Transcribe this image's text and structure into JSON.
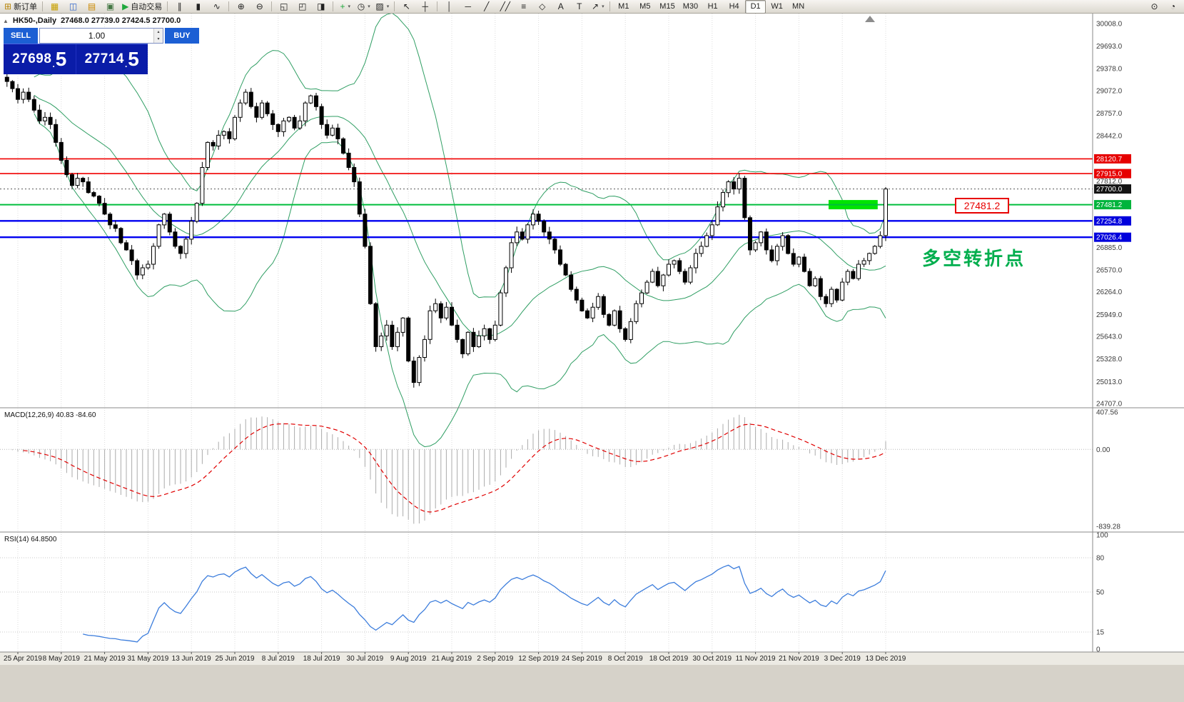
{
  "toolbar": {
    "items": [
      {
        "type": "button",
        "name": "new-order-button",
        "glyph": "⊞",
        "glyph_color": "#B8860B",
        "label": "新订单"
      },
      {
        "type": "sep"
      },
      {
        "type": "button",
        "name": "market-watch-button",
        "glyph": "▦",
        "glyph_color": "#C8A000"
      },
      {
        "type": "button",
        "name": "data-window-button",
        "glyph": "◫",
        "glyph_color": "#3366CC"
      },
      {
        "type": "button",
        "name": "navigator-button",
        "glyph": "▤",
        "glyph_color": "#CC8800"
      },
      {
        "type": "button",
        "name": "terminal-button",
        "glyph": "▣",
        "glyph_color": "#447744"
      },
      {
        "type": "button",
        "name": "autotrading-button",
        "glyph": "▶",
        "glyph_color": "#1FA83C",
        "label": "自动交易"
      },
      {
        "type": "sep"
      },
      {
        "type": "button",
        "name": "chart-bars-button",
        "glyph": "∥"
      },
      {
        "type": "button",
        "name": "chart-candles-button",
        "glyph": "▮"
      },
      {
        "type": "button",
        "name": "chart-line-button",
        "glyph": "∿"
      },
      {
        "type": "sep"
      },
      {
        "type": "button",
        "name": "zoom-in-button",
        "glyph": "⊕"
      },
      {
        "type": "button",
        "name": "zoom-out-button",
        "glyph": "⊖"
      },
      {
        "type": "sep"
      },
      {
        "type": "button",
        "name": "tile-windows-button",
        "glyph": "◱"
      },
      {
        "type": "button",
        "name": "auto-arrange-button",
        "glyph": "◰"
      },
      {
        "type": "button",
        "name": "chart-shift-button",
        "glyph": "◨"
      },
      {
        "type": "sep"
      },
      {
        "type": "button",
        "name": "indicators-button",
        "glyph": "+",
        "glyph_color": "#1FA83C",
        "caret": true
      },
      {
        "type": "button",
        "name": "periods-button",
        "glyph": "◷",
        "caret": true
      },
      {
        "type": "button",
        "name": "templates-button",
        "glyph": "▨",
        "caret": true
      },
      {
        "type": "sep"
      },
      {
        "type": "button",
        "name": "cursor-button",
        "glyph": "↖"
      },
      {
        "type": "button",
        "name": "crosshair-button",
        "glyph": "┼"
      },
      {
        "type": "sep"
      },
      {
        "type": "button",
        "name": "vertical-line-button",
        "glyph": "│"
      },
      {
        "type": "button",
        "name": "horizontal-line-button",
        "glyph": "─"
      },
      {
        "type": "button",
        "name": "trendline-button",
        "glyph": "╱"
      },
      {
        "type": "button",
        "name": "channel-button",
        "glyph": "╱╱"
      },
      {
        "type": "button",
        "name": "fibonacci-button",
        "glyph": "≡"
      },
      {
        "type": "button",
        "name": "shapes-button",
        "glyph": "◇"
      },
      {
        "type": "button",
        "name": "text-button",
        "glyph": "A"
      },
      {
        "type": "button",
        "name": "label-button",
        "glyph": "T"
      },
      {
        "type": "button",
        "name": "arrows-button",
        "glyph": "↗",
        "caret": true
      },
      {
        "type": "sep"
      },
      {
        "type": "timeframes"
      },
      {
        "type": "spacer"
      },
      {
        "type": "button",
        "name": "search-button",
        "glyph": "⊙"
      },
      {
        "type": "button",
        "name": "community-button",
        "glyph": "◔"
      }
    ],
    "timeframes": {
      "options": [
        "M1",
        "M5",
        "M15",
        "M30",
        "H1",
        "H4",
        "D1",
        "W1",
        "MN"
      ],
      "active": "D1"
    }
  },
  "chart": {
    "title": {
      "collapse_glyph": "▲",
      "symbol_period": "HK50-,Daily",
      "ohlc": "27468.0 27739.0 27424.5 27700.0"
    },
    "trade_panel": {
      "sell_label": "SELL",
      "buy_label": "BUY",
      "volume": "1.00",
      "spin_up_glyph": "▴",
      "spin_down_glyph": "▾",
      "sell_price_main": "27698",
      "sell_price_dot": ".",
      "sell_price_pip": "5",
      "buy_price_main": "27714",
      "buy_price_dot": ".",
      "buy_price_pip": "5",
      "button_color": "#1C5FD4",
      "panel_color": "#0A1CA8"
    },
    "annotations": {
      "callout_price": "27481.2",
      "callout_color": "#E80000",
      "turning_point_text": "多空转折点",
      "turning_point_color": "#00AE4D"
    },
    "levels": [
      {
        "name": "resistance-line-28120",
        "price": 28120.7,
        "label": "28120.7",
        "color": "#F00000",
        "label_bg": "#E60000",
        "width": 1.6
      },
      {
        "name": "resistance-line-27915",
        "price": 27915.0,
        "label": "27915.0",
        "color": "#F00000",
        "label_bg": "#E60000",
        "width": 1.6
      },
      {
        "name": "pivot-line-27481",
        "price": 27481.2,
        "label": "27481.2",
        "color": "#00BE3C",
        "label_bg": "#00B43C",
        "width": 2
      },
      {
        "name": "support-line-27254",
        "price": 27254.8,
        "label": "27254.8",
        "color": "#0000F0",
        "label_bg": "#0000DC",
        "width": 2.4
      },
      {
        "name": "support-line-27026",
        "price": 27026.4,
        "label": "27026.4",
        "color": "#0000F0",
        "label_bg": "#0000DC",
        "width": 2.4
      }
    ],
    "current_price": {
      "value": 27700.0,
      "label": "27700.0",
      "label_bg": "#141414"
    },
    "highlight_rect": {
      "price": 27481.2,
      "start_index": 152,
      "end_index": 160,
      "color": "#00E400"
    },
    "y_axis_labels": [
      30008.0,
      29693.0,
      29378.0,
      29072.0,
      28757.0,
      28442.0,
      27812.0,
      26885.0,
      26570.0,
      26264.0,
      25949.0,
      25643.0,
      25328.0,
      25013.0,
      24707.0
    ],
    "x_axis_dates": [
      "25 Apr 2019",
      "8 May 2019",
      "21 May 2019",
      "31 May 2019",
      "13 Jun 2019",
      "25 Jun 2019",
      "8 Jul 2019",
      "18 Jul 2019",
      "30 Jul 2019",
      "9 Aug 2019",
      "21 Aug 2019",
      "2 Sep 2019",
      "12 Sep 2019",
      "24 Sep 2019",
      "8 Oct 2019",
      "18 Oct 2019",
      "30 Oct 2019",
      "11 Nov 2019",
      "21 Nov 2019",
      "3 Dec 2019",
      "13 Dec 2019"
    ]
  },
  "indicators": {
    "macd": {
      "label": "MACD(12,26,9) 40.83 -84.60",
      "axis": [
        407.56,
        0,
        -839.28
      ],
      "histogram_color": "#ABABAB",
      "signal_color": "#E00000"
    },
    "rsi": {
      "label": "RSI(14) 64.8500",
      "axis": [
        100,
        80,
        50,
        15,
        0
      ],
      "levels": [
        80,
        50,
        15
      ],
      "line_color": "#3C7DDC"
    }
  },
  "chart_data": {
    "type": "candlestick",
    "symbol": "HK50-",
    "timeframe": "Daily",
    "ohlc_display": {
      "open": 27468.0,
      "high": 27739.0,
      "low": 27424.5,
      "close": 27700.0
    },
    "y_range": [
      24707.0,
      30008.0
    ],
    "horizontal_levels": [
      28120.7,
      27915.0,
      27481.2,
      27254.8,
      27026.4
    ],
    "overlays": [
      {
        "name": "Bollinger Bands",
        "period": 20,
        "deviation": 2,
        "color": "#2F9E63"
      }
    ],
    "closes": [
      29200,
      29100,
      28950,
      29050,
      28950,
      28800,
      28650,
      28700,
      28600,
      28350,
      28100,
      27900,
      27750,
      27850,
      27800,
      27650,
      27600,
      27500,
      27350,
      27200,
      27150,
      26950,
      26850,
      26700,
      26500,
      26600,
      26650,
      26900,
      27200,
      27350,
      27100,
      26900,
      26800,
      27000,
      27250,
      27500,
      28000,
      28350,
      28300,
      28450,
      28500,
      28400,
      28700,
      28900,
      29050,
      28850,
      28700,
      28900,
      28750,
      28600,
      28500,
      28650,
      28700,
      28550,
      28650,
      28900,
      29000,
      28850,
      28600,
      28450,
      28550,
      28400,
      28200,
      28000,
      27800,
      27350,
      26900,
      26100,
      25500,
      25650,
      25800,
      25500,
      25700,
      25900,
      25300,
      25000,
      25350,
      25600,
      26000,
      26100,
      25900,
      26050,
      25800,
      25600,
      25400,
      25700,
      25500,
      25650,
      25750,
      25600,
      25800,
      26250,
      26600,
      26950,
      27100,
      27000,
      27200,
      27350,
      27250,
      27100,
      27000,
      26850,
      26650,
      26500,
      26300,
      26150,
      26000,
      25900,
      26050,
      26200,
      25950,
      25800,
      26000,
      25750,
      25600,
      25850,
      26100,
      26250,
      26400,
      26550,
      26350,
      26500,
      26650,
      26700,
      26550,
      26400,
      26600,
      26800,
      26900,
      27050,
      27200,
      27450,
      27650,
      27800,
      27700,
      27850,
      27300,
      26850,
      26950,
      27100,
      26850,
      26700,
      26900,
      27050,
      26800,
      26650,
      26750,
      26550,
      26350,
      26450,
      26200,
      26100,
      26300,
      26150,
      26400,
      26550,
      26450,
      26650,
      26700,
      26800,
      26900,
      27050,
      27700
    ]
  }
}
